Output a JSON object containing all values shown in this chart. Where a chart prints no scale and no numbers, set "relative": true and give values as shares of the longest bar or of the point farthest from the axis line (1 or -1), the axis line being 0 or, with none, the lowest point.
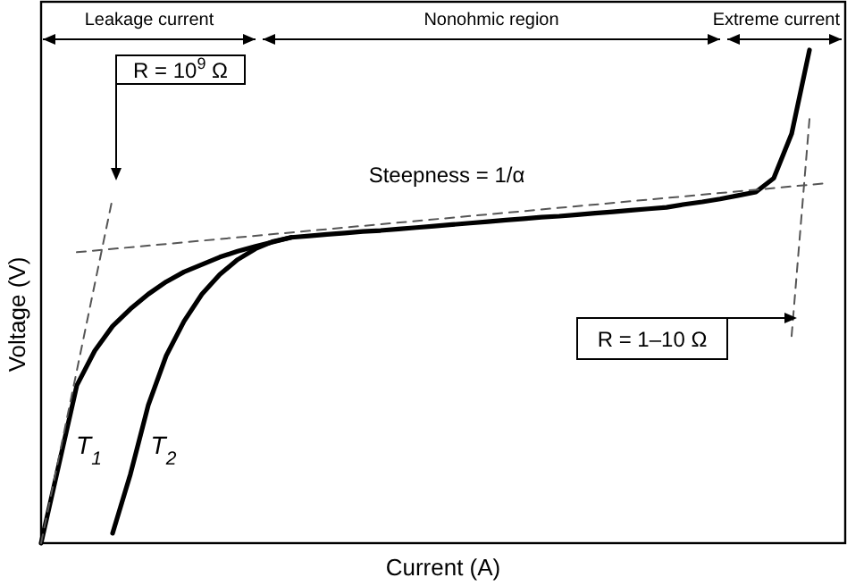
{
  "chart_data": {
    "type": "line",
    "relative": true,
    "xlabel": "Current (A)",
    "ylabel": "Voltage (V)",
    "categories": [
      null,
      null,
      null,
      null,
      null,
      null,
      null,
      null,
      null,
      null,
      null,
      null,
      null,
      null,
      null,
      null,
      null,
      null,
      null,
      null,
      null,
      null,
      null,
      null,
      null,
      null,
      null,
      null,
      null,
      null,
      null,
      null,
      null,
      null,
      null,
      null,
      null,
      null,
      null,
      null,
      null,
      null,
      null,
      null,
      null
    ],
    "series": [
      {
        "name": "T$_{1}$",
        "color": "#000000",
        "values": [
          0,
          0.16,
          0.32,
          0.39,
          0.44,
          0.475,
          0.505,
          0.53,
          0.55,
          0.565,
          0.58,
          0.592,
          0.602,
          0.611,
          0.62,
          0.623,
          0.626,
          0.629,
          0.632,
          0.634,
          0.637,
          0.64,
          0.643,
          0.646,
          0.649,
          0.652,
          0.655,
          0.658,
          0.661,
          0.663,
          0.666,
          0.669,
          0.672,
          0.675,
          0.678,
          0.681,
          0.687,
          0.692,
          0.698,
          0.705,
          0.712,
          0.74,
          0.83,
          1,
          null
        ]
      },
      {
        "name": "T$_{2}$",
        "color": "#000000",
        "values": [
          null,
          null,
          null,
          null,
          0.02,
          0.14,
          0.28,
          0.38,
          0.45,
          0.505,
          0.545,
          0.575,
          0.597,
          0.612,
          0.62,
          null,
          null,
          null,
          null,
          null,
          null,
          null,
          null,
          null,
          null,
          null,
          null,
          null,
          null,
          null,
          null,
          null,
          null,
          null,
          null,
          null,
          null,
          null,
          null,
          null,
          null,
          null,
          null,
          null,
          null
        ]
      },
      {
        "color": "#555555",
        "line_style": "dashed",
        "values": [
          0,
          null,
          null,
          null,
          0.7,
          null,
          null,
          null,
          null,
          null,
          null,
          null,
          null,
          null,
          null,
          null,
          null,
          null,
          null,
          null,
          null,
          null,
          null,
          null,
          null,
          null,
          null,
          null,
          null,
          null,
          null,
          null,
          null,
          null,
          null,
          null,
          null,
          null,
          null,
          null,
          null,
          null,
          null,
          null,
          null
        ]
      },
      {
        "color": "#555555",
        "line_style": "dashed",
        "values": [
          null,
          null,
          0.59,
          null,
          null,
          null,
          null,
          null,
          null,
          null,
          null,
          null,
          null,
          null,
          null,
          null,
          null,
          null,
          null,
          null,
          null,
          null,
          null,
          null,
          null,
          null,
          null,
          null,
          null,
          null,
          null,
          null,
          null,
          null,
          null,
          null,
          null,
          null,
          null,
          null,
          null,
          null,
          null,
          null,
          0.73
        ]
      },
      {
        "color": "#555555",
        "line_style": "dashed",
        "values": [
          null,
          null,
          null,
          null,
          null,
          null,
          null,
          null,
          null,
          null,
          null,
          null,
          null,
          null,
          null,
          null,
          null,
          null,
          null,
          null,
          null,
          null,
          null,
          null,
          null,
          null,
          null,
          null,
          null,
          null,
          null,
          null,
          null,
          null,
          null,
          null,
          null,
          null,
          null,
          null,
          null,
          null,
          0.42,
          0.86,
          null
        ]
      }
    ],
    "annotations": [
      "Leakage current",
      "Nonohmic region",
      "Extreme current",
      "R = 10$^{9}$ Ω",
      "Steepness = 1/α",
      "R = 1–10 Ω"
    ]
  }
}
